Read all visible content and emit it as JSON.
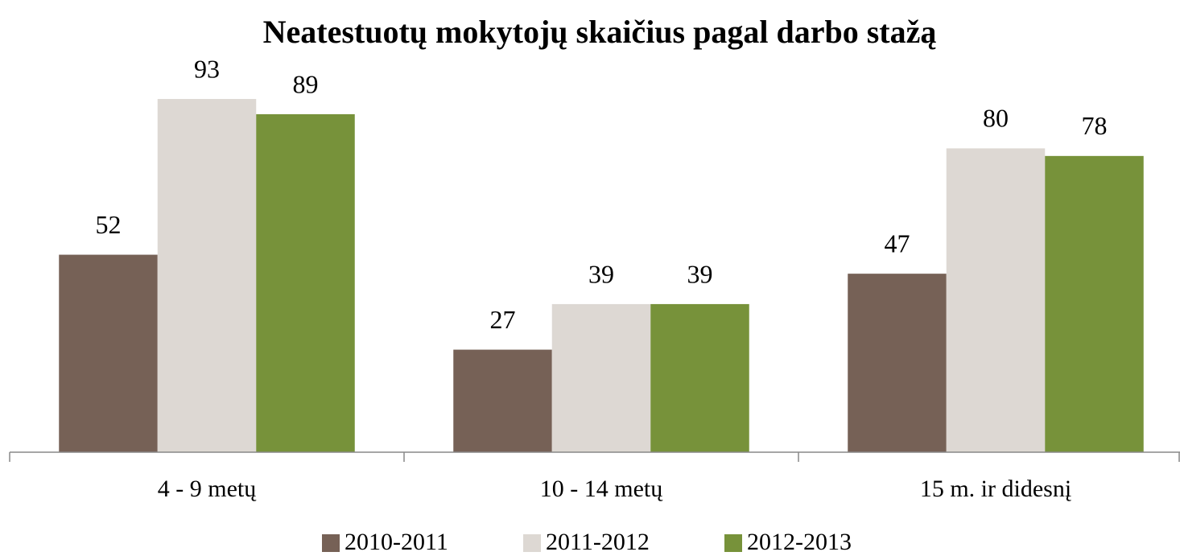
{
  "chart_data": {
    "type": "bar",
    "title": "Neatestuotų mokytojų skaičius pagal darbo stažą",
    "categories": [
      "4 - 9 metų",
      "10 - 14 metų",
      "15 m. ir didesnį"
    ],
    "series": [
      {
        "name": "2010-2011",
        "color": "#766156",
        "values": [
          52,
          27,
          47
        ]
      },
      {
        "name": "2011-2012",
        "color": "#ddd8d3",
        "values": [
          93,
          39,
          80
        ]
      },
      {
        "name": "2012-2013",
        "color": "#77923a",
        "values": [
          89,
          39,
          78
        ]
      }
    ],
    "ylim": [
      0,
      100
    ]
  }
}
